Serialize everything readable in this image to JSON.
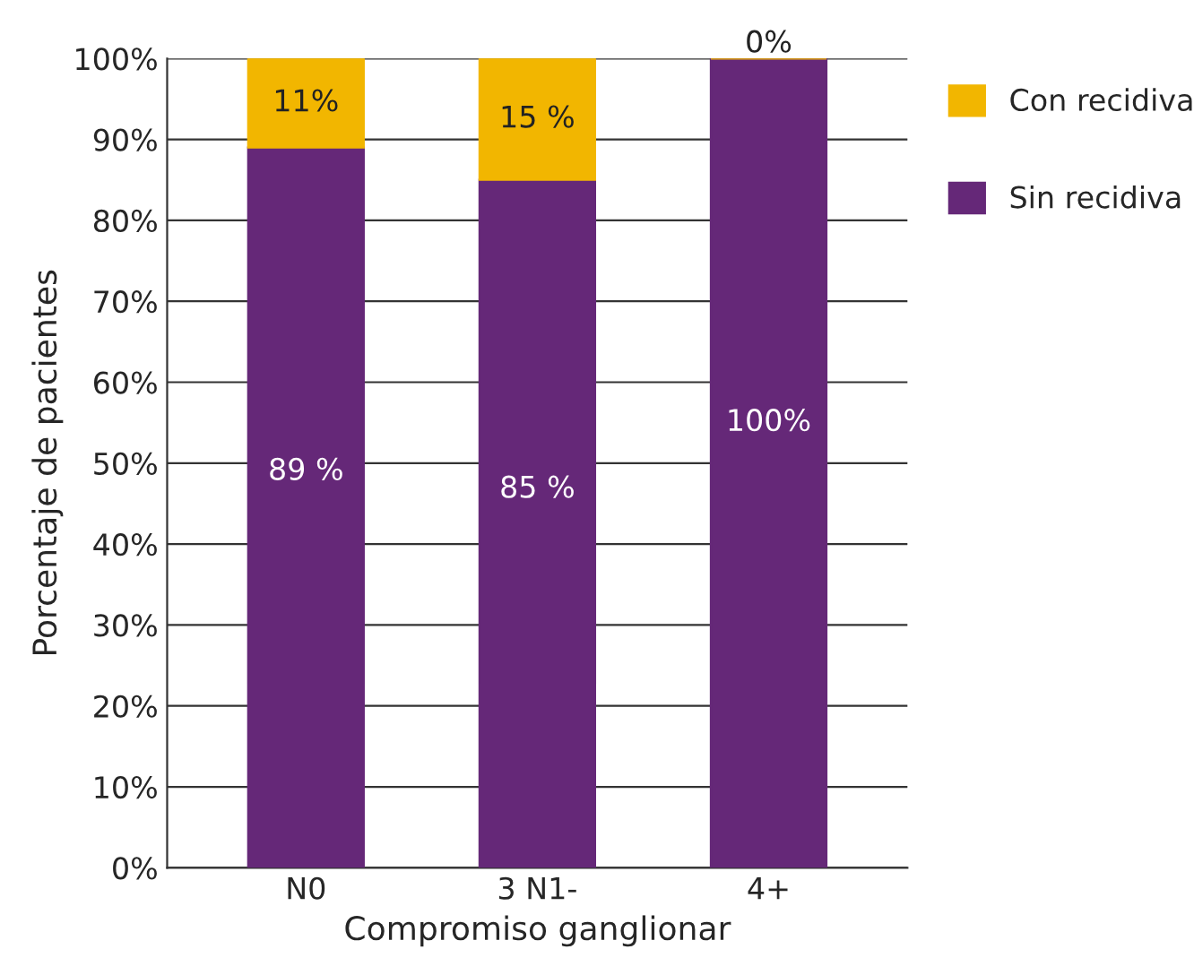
{
  "chart_data": {
    "type": "bar",
    "stacked": true,
    "xlabel": "Compromiso ganglionar",
    "ylabel": "Porcentaje de pacientes",
    "categories": [
      "N0",
      "3 N1-",
      "4+"
    ],
    "series": [
      {
        "name": "Sin recidiva",
        "color": "#652878",
        "values": [
          89,
          85,
          100
        ],
        "value_labels": [
          "89 %",
          "85 %",
          "100%"
        ]
      },
      {
        "name": "Con recidiva",
        "color": "#f2b600",
        "values": [
          11,
          15,
          0
        ],
        "value_labels": [
          "11%",
          "15 %",
          "0%"
        ]
      }
    ],
    "ylim": [
      0,
      100
    ],
    "yticks": [
      {
        "value": 0,
        "label": "0%"
      },
      {
        "value": 10,
        "label": "10%"
      },
      {
        "value": 20,
        "label": "20%"
      },
      {
        "value": 30,
        "label": "30%"
      },
      {
        "value": 40,
        "label": "40%"
      },
      {
        "value": 50,
        "label": "50%"
      },
      {
        "value": 60,
        "label": "60%"
      },
      {
        "value": 70,
        "label": "70%"
      },
      {
        "value": 80,
        "label": "80%"
      },
      {
        "value": 90,
        "label": "90%"
      },
      {
        "value": 100,
        "label": "100%"
      }
    ],
    "grid": "y",
    "legend": "top right"
  }
}
